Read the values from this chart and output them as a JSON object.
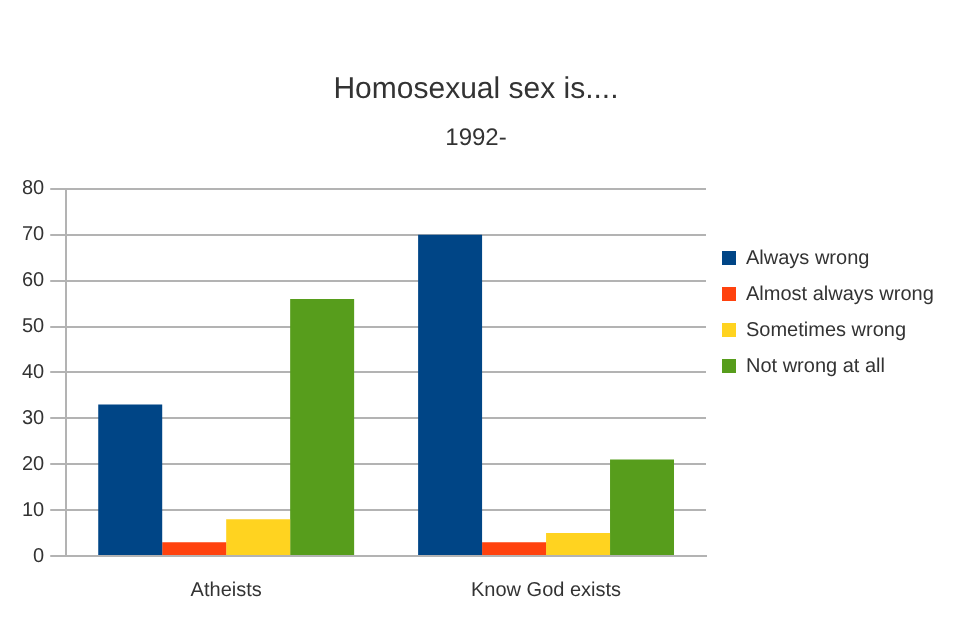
{
  "chart_data": {
    "type": "bar",
    "title": "Homosexual sex is....",
    "subtitle": "1992-",
    "categories": [
      "Atheists",
      "Know God exists"
    ],
    "series": [
      {
        "name": "Always wrong",
        "color": "#004586",
        "values": [
          33,
          70
        ]
      },
      {
        "name": "Almost always wrong",
        "color": "#ff420e",
        "values": [
          3,
          3
        ]
      },
      {
        "name": "Sometimes wrong",
        "color": "#ffd320",
        "values": [
          8,
          5
        ]
      },
      {
        "name": "Not wrong at all",
        "color": "#579d1c",
        "values": [
          56,
          21
        ]
      }
    ],
    "ylim": [
      0,
      80
    ],
    "yticks": [
      0,
      10,
      20,
      30,
      40,
      50,
      60,
      70,
      80
    ],
    "grid": "y",
    "legend": "right"
  }
}
